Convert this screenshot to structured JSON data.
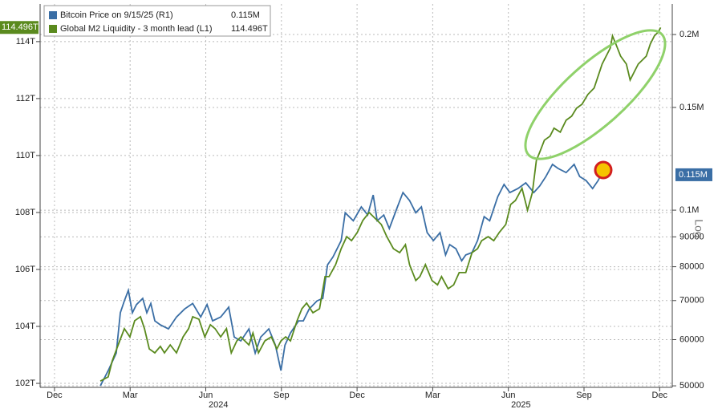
{
  "chart_data": {
    "type": "line",
    "xlim": [
      -0.57,
      24.5
    ],
    "xticks": [
      {
        "value": 0,
        "label": "Dec"
      },
      {
        "value": 3,
        "label": "Mar"
      },
      {
        "value": 6,
        "label": "Jun"
      },
      {
        "value": 9,
        "label": "Sep"
      },
      {
        "value": 12,
        "label": "Dec"
      },
      {
        "value": 15,
        "label": "Mar"
      },
      {
        "value": 18,
        "label": "Jun"
      },
      {
        "value": 21,
        "label": "Sep"
      },
      {
        "value": 24,
        "label": "Dec"
      }
    ],
    "year_labels": [
      {
        "value": 6.5,
        "label": "2024"
      },
      {
        "value": 18.5,
        "label": "2025"
      }
    ],
    "ylim": [
      101.86,
      115.32
    ],
    "yticks": [
      {
        "value": 102,
        "label": "102T"
      },
      {
        "value": 104,
        "label": "104T"
      },
      {
        "value": 106,
        "label": "106T"
      },
      {
        "value": 108,
        "label": "108T"
      },
      {
        "value": 110,
        "label": "110T"
      },
      {
        "value": 112,
        "label": "112T"
      },
      {
        "value": 114,
        "label": "114T"
      }
    ],
    "y2lim": [
      49700,
      225600
    ],
    "y2scale": "log",
    "y2_scale_label": "Log",
    "y2ticks": [
      50000,
      60000,
      70000,
      80000,
      90000,
      {
        "value": 100000,
        "label": "0.1M"
      },
      {
        "value": 150000,
        "label": "0.15M"
      },
      {
        "value": 200000,
        "label": "0.2M"
      }
    ],
    "grid": true,
    "legend": "upper left",
    "series": [
      {
        "name": "Bitcoin Price on 9/15/25 (R1)",
        "color": "#3a6ea5",
        "axis": "y2",
        "last_label": "0.115M",
        "x": [
          1.82,
          2.13,
          2.45,
          2.61,
          2.77,
          2.93,
          3.09,
          3.25,
          3.5,
          3.66,
          3.82,
          3.98,
          4.2,
          4.52,
          4.84,
          5.16,
          5.48,
          5.8,
          6.05,
          6.27,
          6.59,
          6.91,
          7.13,
          7.39,
          7.71,
          7.96,
          8.18,
          8.5,
          8.76,
          8.98,
          9.14,
          9.36,
          9.68,
          9.87,
          10.1,
          10.41,
          10.64,
          10.83,
          11.05,
          11.37,
          11.53,
          11.85,
          12.17,
          12.42,
          12.64,
          12.8,
          13.06,
          13.28,
          13.6,
          13.82,
          14.08,
          14.33,
          14.55,
          14.78,
          15.03,
          15.29,
          15.51,
          15.67,
          15.92,
          16.15,
          16.31,
          16.56,
          16.78,
          17.04,
          17.26,
          17.58,
          17.83,
          18.06,
          18.38,
          18.69,
          19.01,
          19.24,
          19.49,
          19.75,
          19.97,
          20.29,
          20.61,
          20.83,
          21.08,
          21.34,
          21.56,
          21.72,
          21.88
        ],
        "values": [
          50000,
          53100,
          56900,
          66700,
          69900,
          72900,
          66700,
          68900,
          70600,
          66700,
          69200,
          64600,
          63600,
          62600,
          65600,
          67700,
          69200,
          65600,
          68900,
          64600,
          65600,
          68200,
          60600,
          59700,
          62600,
          56900,
          60600,
          62600,
          58700,
          53100,
          58700,
          61600,
          64600,
          64600,
          67700,
          69900,
          70600,
          80600,
          83200,
          88700,
          99000,
          95900,
          101300,
          98100,
          106200,
          95900,
          98100,
          93000,
          101300,
          107200,
          103900,
          99000,
          101300,
          91500,
          88700,
          91500,
          83800,
          87300,
          85900,
          81900,
          83800,
          84600,
          88700,
          97500,
          95900,
          105500,
          110700,
          107200,
          108900,
          111400,
          107200,
          110000,
          114200,
          119800,
          117900,
          116000,
          119800,
          114200,
          112400,
          108900,
          112400,
          116000,
          115000
        ]
      },
      {
        "name": "Global M2 Liquidity - 3 month lead (L1)",
        "color": "#5a8a1e",
        "last_label": "114.496T",
        "x": [
          1.82,
          2.13,
          2.29,
          2.55,
          2.77,
          2.99,
          3.18,
          3.41,
          3.57,
          3.76,
          3.98,
          4.2,
          4.36,
          4.59,
          4.84,
          5.1,
          5.32,
          5.48,
          5.73,
          5.96,
          6.18,
          6.37,
          6.59,
          6.82,
          7.01,
          7.23,
          7.39,
          7.71,
          7.87,
          8.09,
          8.34,
          8.6,
          8.82,
          8.98,
          9.17,
          9.36,
          9.62,
          9.81,
          10.0,
          10.25,
          10.51,
          10.73,
          10.89,
          11.15,
          11.37,
          11.59,
          11.78,
          12.01,
          12.23,
          12.48,
          12.71,
          12.96,
          13.18,
          13.44,
          13.69,
          13.92,
          14.08,
          14.33,
          14.49,
          14.71,
          14.97,
          15.19,
          15.35,
          15.61,
          15.83,
          16.05,
          16.31,
          16.56,
          16.78,
          16.94,
          17.2,
          17.42,
          17.64,
          17.9,
          18.09,
          18.28,
          18.54,
          18.76,
          18.95,
          19.11,
          19.24,
          19.43,
          19.65,
          19.81,
          20.06,
          20.29,
          20.51,
          20.7,
          20.92,
          21.15,
          21.4,
          21.56,
          21.72,
          21.88,
          22.04,
          22.13,
          22.26,
          22.45,
          22.68,
          22.83,
          22.99,
          23.15,
          23.31,
          23.47,
          23.63,
          23.79,
          23.95,
          24.04
        ],
        "values": [
          102.08,
          102.23,
          102.79,
          103.41,
          103.92,
          103.63,
          104.2,
          104.34,
          103.92,
          103.21,
          103.07,
          103.3,
          103.07,
          103.35,
          103.07,
          103.63,
          103.92,
          104.34,
          104.25,
          103.63,
          104.06,
          103.92,
          103.63,
          103.92,
          103.07,
          103.49,
          103.63,
          103.35,
          103.77,
          103.07,
          103.49,
          103.63,
          103.21,
          103.49,
          103.63,
          103.49,
          104.2,
          104.62,
          104.82,
          104.48,
          104.62,
          105.75,
          105.75,
          106.17,
          106.73,
          107.15,
          107.01,
          107.3,
          107.72,
          108.0,
          107.8,
          107.58,
          107.15,
          106.73,
          106.59,
          106.87,
          106.17,
          105.61,
          105.75,
          106.17,
          105.61,
          105.46,
          105.75,
          105.32,
          105.46,
          105.89,
          105.89,
          106.59,
          106.73,
          107.01,
          107.15,
          107.01,
          107.3,
          107.58,
          108.28,
          108.42,
          108.85,
          108.08,
          108.7,
          109.83,
          110.11,
          110.54,
          110.68,
          110.96,
          110.82,
          111.24,
          111.38,
          111.66,
          111.8,
          112.14,
          112.37,
          112.79,
          113.21,
          113.49,
          113.77,
          114.2,
          113.92,
          113.49,
          113.21,
          112.65,
          112.93,
          113.21,
          113.35,
          113.49,
          113.92,
          114.2,
          114.34,
          114.496
        ]
      }
    ]
  }
}
